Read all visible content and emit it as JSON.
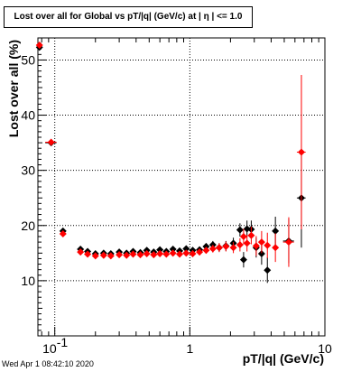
{
  "chart_data": {
    "type": "scatter",
    "title": "Lost over all for Global vs pT/|q| (GeV/c) at |  η | <= 1.0",
    "xlabel": "pT/|q| (GeV/c)",
    "ylabel": "Lost over all (%)",
    "x_scale": "log",
    "xlim": [
      0.075,
      10
    ],
    "ylim": [
      0,
      54
    ],
    "x_ticks": [
      {
        "value": 0.1,
        "label": "10",
        "exp": "-1"
      },
      {
        "value": 1,
        "label": "1",
        "exp": ""
      },
      {
        "value": 10,
        "label": "10",
        "exp": ""
      }
    ],
    "y_ticks": [
      10,
      20,
      30,
      40,
      50
    ],
    "grid": true,
    "series": [
      {
        "color": "#000000",
        "points": [
          {
            "x": 0.077,
            "y": 52.3,
            "xerr": 0.002,
            "yerr": 0.3
          },
          {
            "x": 0.094,
            "y": 35.0,
            "xerr": 0.009,
            "yerr": 0.4
          },
          {
            "x": 0.115,
            "y": 19.0,
            "xerr": 0.005,
            "yerr": 0.4
          },
          {
            "x": 0.155,
            "y": 15.7,
            "xerr": 0.006,
            "yerr": 0.4
          },
          {
            "x": 0.175,
            "y": 15.3,
            "xerr": 0.006,
            "yerr": 0.4
          },
          {
            "x": 0.2,
            "y": 14.9,
            "xerr": 0.008,
            "yerr": 0.4
          },
          {
            "x": 0.23,
            "y": 15.0,
            "xerr": 0.008,
            "yerr": 0.4
          },
          {
            "x": 0.26,
            "y": 14.9,
            "xerr": 0.008,
            "yerr": 0.4
          },
          {
            "x": 0.3,
            "y": 15.2,
            "xerr": 0.01,
            "yerr": 0.4
          },
          {
            "x": 0.34,
            "y": 15.0,
            "xerr": 0.01,
            "yerr": 0.4
          },
          {
            "x": 0.38,
            "y": 15.3,
            "xerr": 0.01,
            "yerr": 0.4
          },
          {
            "x": 0.43,
            "y": 15.1,
            "xerr": 0.012,
            "yerr": 0.4
          },
          {
            "x": 0.48,
            "y": 15.5,
            "xerr": 0.012,
            "yerr": 0.4
          },
          {
            "x": 0.54,
            "y": 15.2,
            "xerr": 0.015,
            "yerr": 0.5
          },
          {
            "x": 0.6,
            "y": 15.6,
            "xerr": 0.015,
            "yerr": 0.5
          },
          {
            "x": 0.67,
            "y": 15.3,
            "xerr": 0.018,
            "yerr": 0.5
          },
          {
            "x": 0.75,
            "y": 15.7,
            "xerr": 0.02,
            "yerr": 0.5
          },
          {
            "x": 0.84,
            "y": 15.4,
            "xerr": 0.02,
            "yerr": 0.5
          },
          {
            "x": 0.94,
            "y": 15.8,
            "xerr": 0.025,
            "yerr": 0.5
          },
          {
            "x": 1.05,
            "y": 15.5,
            "xerr": 0.025,
            "yerr": 0.6
          },
          {
            "x": 1.18,
            "y": 15.6,
            "xerr": 0.03,
            "yerr": 0.6
          },
          {
            "x": 1.32,
            "y": 16.2,
            "xerr": 0.03,
            "yerr": 0.6
          },
          {
            "x": 1.48,
            "y": 16.5,
            "xerr": 0.04,
            "yerr": 0.7
          },
          {
            "x": 1.65,
            "y": 16.0,
            "xerr": 0.04,
            "yerr": 0.8
          },
          {
            "x": 1.85,
            "y": 16.3,
            "xerr": 0.05,
            "yerr": 0.9
          },
          {
            "x": 2.1,
            "y": 16.8,
            "xerr": 0.06,
            "yerr": 1.0
          },
          {
            "x": 2.35,
            "y": 19.2,
            "xerr": 0.07,
            "yerr": 1.2
          },
          {
            "x": 2.5,
            "y": 13.8,
            "xerr": 0.07,
            "yerr": 1.4
          },
          {
            "x": 2.65,
            "y": 19.4,
            "xerr": 0.07,
            "yerr": 1.5
          },
          {
            "x": 2.85,
            "y": 19.3,
            "xerr": 0.08,
            "yerr": 1.6
          },
          {
            "x": 3.1,
            "y": 16.0,
            "xerr": 0.08,
            "yerr": 1.8
          },
          {
            "x": 3.4,
            "y": 14.9,
            "xerr": 0.1,
            "yerr": 2.0
          },
          {
            "x": 3.75,
            "y": 11.9,
            "xerr": 0.1,
            "yerr": 2.3
          },
          {
            "x": 4.3,
            "y": 19.0,
            "xerr": 0.2,
            "yerr": 2.6
          },
          {
            "x": 5.4,
            "y": 17.2,
            "xerr": 0.5,
            "yerr": 4.0
          },
          {
            "x": 6.7,
            "y": 25.0,
            "xerr": 0.5,
            "yerr": 9.0
          }
        ]
      },
      {
        "color": "#ff0000",
        "points": [
          {
            "x": 0.077,
            "y": 52.7,
            "xerr": 0.002,
            "yerr": 0.3
          },
          {
            "x": 0.094,
            "y": 35.1,
            "xerr": 0.009,
            "yerr": 0.4
          },
          {
            "x": 0.115,
            "y": 18.5,
            "xerr": 0.005,
            "yerr": 0.4
          },
          {
            "x": 0.155,
            "y": 15.2,
            "xerr": 0.006,
            "yerr": 0.4
          },
          {
            "x": 0.175,
            "y": 14.8,
            "xerr": 0.006,
            "yerr": 0.4
          },
          {
            "x": 0.2,
            "y": 14.5,
            "xerr": 0.008,
            "yerr": 0.4
          },
          {
            "x": 0.23,
            "y": 14.6,
            "xerr": 0.008,
            "yerr": 0.4
          },
          {
            "x": 0.26,
            "y": 14.5,
            "xerr": 0.008,
            "yerr": 0.4
          },
          {
            "x": 0.3,
            "y": 14.7,
            "xerr": 0.01,
            "yerr": 0.4
          },
          {
            "x": 0.34,
            "y": 14.6,
            "xerr": 0.01,
            "yerr": 0.4
          },
          {
            "x": 0.38,
            "y": 14.8,
            "xerr": 0.01,
            "yerr": 0.4
          },
          {
            "x": 0.43,
            "y": 14.7,
            "xerr": 0.012,
            "yerr": 0.4
          },
          {
            "x": 0.48,
            "y": 14.9,
            "xerr": 0.012,
            "yerr": 0.4
          },
          {
            "x": 0.54,
            "y": 14.7,
            "xerr": 0.015,
            "yerr": 0.5
          },
          {
            "x": 0.6,
            "y": 14.9,
            "xerr": 0.015,
            "yerr": 0.5
          },
          {
            "x": 0.67,
            "y": 14.8,
            "xerr": 0.018,
            "yerr": 0.5
          },
          {
            "x": 0.75,
            "y": 15.0,
            "xerr": 0.02,
            "yerr": 0.5
          },
          {
            "x": 0.84,
            "y": 14.8,
            "xerr": 0.02,
            "yerr": 0.5
          },
          {
            "x": 0.94,
            "y": 15.0,
            "xerr": 0.025,
            "yerr": 0.5
          },
          {
            "x": 1.05,
            "y": 14.9,
            "xerr": 0.025,
            "yerr": 0.6
          },
          {
            "x": 1.18,
            "y": 15.2,
            "xerr": 0.03,
            "yerr": 0.6
          },
          {
            "x": 1.32,
            "y": 15.5,
            "xerr": 0.03,
            "yerr": 0.6
          },
          {
            "x": 1.48,
            "y": 15.8,
            "xerr": 0.04,
            "yerr": 0.7
          },
          {
            "x": 1.65,
            "y": 16.0,
            "xerr": 0.04,
            "yerr": 0.8
          },
          {
            "x": 1.85,
            "y": 16.2,
            "xerr": 0.05,
            "yerr": 0.9
          },
          {
            "x": 2.1,
            "y": 16.0,
            "xerr": 0.06,
            "yerr": 1.0
          },
          {
            "x": 2.35,
            "y": 16.5,
            "xerr": 0.07,
            "yerr": 1.2
          },
          {
            "x": 2.5,
            "y": 18.0,
            "xerr": 0.07,
            "yerr": 1.4
          },
          {
            "x": 2.65,
            "y": 16.8,
            "xerr": 0.07,
            "yerr": 1.5
          },
          {
            "x": 2.85,
            "y": 18.2,
            "xerr": 0.08,
            "yerr": 1.6
          },
          {
            "x": 3.1,
            "y": 16.3,
            "xerr": 0.08,
            "yerr": 1.8
          },
          {
            "x": 3.4,
            "y": 17.0,
            "xerr": 0.1,
            "yerr": 2.0
          },
          {
            "x": 3.75,
            "y": 16.4,
            "xerr": 0.1,
            "yerr": 2.3
          },
          {
            "x": 4.3,
            "y": 16.0,
            "xerr": 0.2,
            "yerr": 2.6
          },
          {
            "x": 5.4,
            "y": 17.0,
            "xerr": 0.5,
            "yerr": 4.5
          },
          {
            "x": 6.7,
            "y": 33.3,
            "xerr": 0.5,
            "yerr": 14.0
          }
        ]
      }
    ]
  },
  "footer": {
    "timestamp": "Wed Apr  1 08:42:10 2020"
  }
}
